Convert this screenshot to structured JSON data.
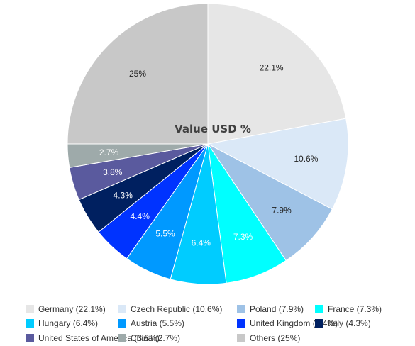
{
  "chart_data": {
    "type": "pie",
    "title": "Value USD %",
    "slices": [
      {
        "name": "Germany",
        "value": 22.1,
        "label": "22.1%",
        "legend": "Germany (22.1%)",
        "color": "#e6e6e6",
        "label_color": "#222222"
      },
      {
        "name": "Czech Republic",
        "value": 10.6,
        "label": "10.6%",
        "legend": "Czech Republic (10.6%)",
        "color": "#dae8f7",
        "label_color": "#222222"
      },
      {
        "name": "Poland",
        "value": 7.9,
        "label": "7.9%",
        "legend": "Poland (7.9%)",
        "color": "#9ec2e6",
        "label_color": "#222222"
      },
      {
        "name": "France",
        "value": 7.3,
        "label": "7.3%",
        "legend": "France (7.3%)",
        "color": "#00ffff",
        "label_color": "#ffffff"
      },
      {
        "name": "Hungary",
        "value": 6.4,
        "label": "6.4%",
        "legend": "Hungary (6.4%)",
        "color": "#00ccff",
        "label_color": "#ffffff"
      },
      {
        "name": "Austria",
        "value": 5.5,
        "label": "5.5%",
        "legend": "Austria (5.5%)",
        "color": "#0099ff",
        "label_color": "#ffffff"
      },
      {
        "name": "United Kingdom",
        "value": 4.4,
        "label": "4.4%",
        "legend": "United Kingdom (4.4%)",
        "color": "#0033ff",
        "label_color": "#ffffff"
      },
      {
        "name": "Italy",
        "value": 4.3,
        "label": "4.3%",
        "legend": "Italy (4.3%)",
        "color": "#002060",
        "label_color": "#ffffff"
      },
      {
        "name": "United States of America",
        "value": 3.8,
        "label": "3.8%",
        "legend": "United States of America (3.8%)",
        "color": "#5a5a9e",
        "label_color": "#ffffff"
      },
      {
        "name": "China",
        "value": 2.7,
        "label": "2.7%",
        "legend": "China (2.7%)",
        "color": "#9eaaaa",
        "label_color": "#ffffff"
      },
      {
        "name": "Others",
        "value": 25,
        "label": "25%",
        "legend": "Others (25%)",
        "color": "#c8c8c8",
        "label_color": "#222222"
      }
    ],
    "legend_position": "bottom"
  }
}
